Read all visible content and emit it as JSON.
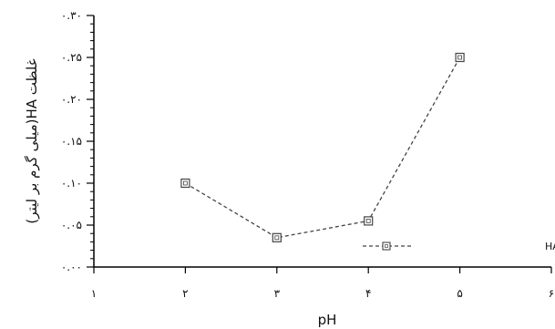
{
  "chart_data": {
    "type": "line",
    "title": "",
    "xlabel": "pH",
    "ylabel": "غلظت HA(میلی گرم بر لیتر)",
    "xlim": [
      1,
      6
    ],
    "ylim": [
      0,
      0.3
    ],
    "x_ticks": [
      1,
      2,
      3,
      4,
      5,
      6
    ],
    "x_tick_labels": [
      "۱",
      "۲",
      "۳",
      "۴",
      "۵",
      "۶"
    ],
    "y_ticks": [
      0,
      0.05,
      0.1,
      0.15,
      0.2,
      0.25,
      0.3
    ],
    "y_tick_labels": [
      "۰.۰۰",
      "۰.۰۵",
      "۰.۱۰",
      "۰.۱۵",
      "۰.۲۰",
      "۰.۲۵",
      "۰.۳۰"
    ],
    "grid": false,
    "legend_position": "bottom-right",
    "series": [
      {
        "name": "غلظت باقی مانده HA",
        "x": [
          2,
          3,
          4,
          5
        ],
        "y": [
          0.1,
          0.035,
          0.055,
          0.25
        ],
        "color": "#444444",
        "line_style": "dashed",
        "marker": "open-square"
      }
    ]
  }
}
